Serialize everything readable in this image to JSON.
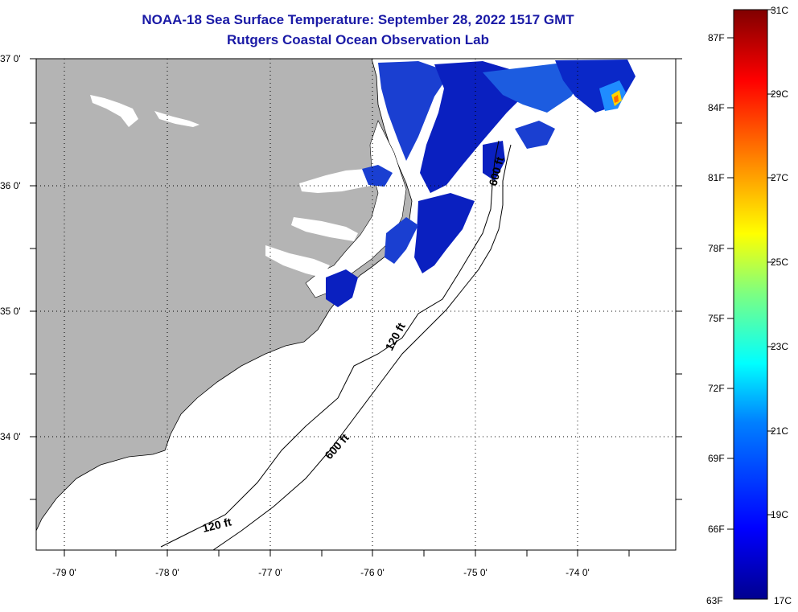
{
  "title": {
    "line1": "NOAA-18 Sea Surface Temperature:  September 28, 2022 1517 GMT",
    "line2": "Rutgers Coastal Ocean Observation Lab"
  },
  "map": {
    "lat_labels": [
      "37 0'",
      "36 0'",
      "35 0'",
      "34 0'"
    ],
    "lon_labels": [
      "-79 0'",
      "-78 0'",
      "-77 0'",
      "-76 0'",
      "-75 0'",
      "-74 0'"
    ],
    "contour_labels": [
      "120 ft",
      "600 ft",
      "120 ft",
      "600 ft"
    ],
    "land_color": "#b4b4b4",
    "cloud_color": "#ffffff"
  },
  "colorbar": {
    "fahrenheit": [
      "87F",
      "84F",
      "81F",
      "78F",
      "75F",
      "72F",
      "69F",
      "66F",
      "63F"
    ],
    "celsius": [
      "31C",
      "29C",
      "27C",
      "25C",
      "23C",
      "21C",
      "19C",
      "17C"
    ],
    "range_c": [
      17,
      31
    ]
  }
}
